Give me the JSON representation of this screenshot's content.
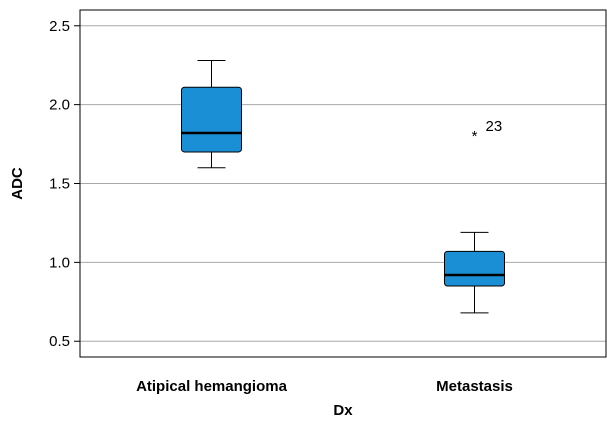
{
  "chart_data": {
    "type": "boxplot",
    "xlabel": "Dx",
    "ylabel": "ADC",
    "ylim": [
      0.4,
      2.6
    ],
    "yticks": [
      0.5,
      1.0,
      1.5,
      2.0,
      2.5
    ],
    "ytick_labels": [
      "0.5",
      "1.0",
      "1.5",
      "2.0",
      "2.5"
    ],
    "grid": true,
    "categories": [
      "Atipical hemangioma",
      "Metastasis"
    ],
    "boxes": [
      {
        "category": "Atipical hemangioma",
        "min": 1.6,
        "q1": 1.7,
        "median": 1.82,
        "q3": 2.11,
        "max": 2.28,
        "outliers": []
      },
      {
        "category": "Metastasis",
        "min": 0.68,
        "q1": 0.85,
        "median": 0.92,
        "q3": 1.07,
        "max": 1.19,
        "outliers": [
          {
            "value": 1.84,
            "label": "23",
            "marker": "*"
          }
        ]
      }
    ],
    "box_color": "#1b8fd6"
  }
}
